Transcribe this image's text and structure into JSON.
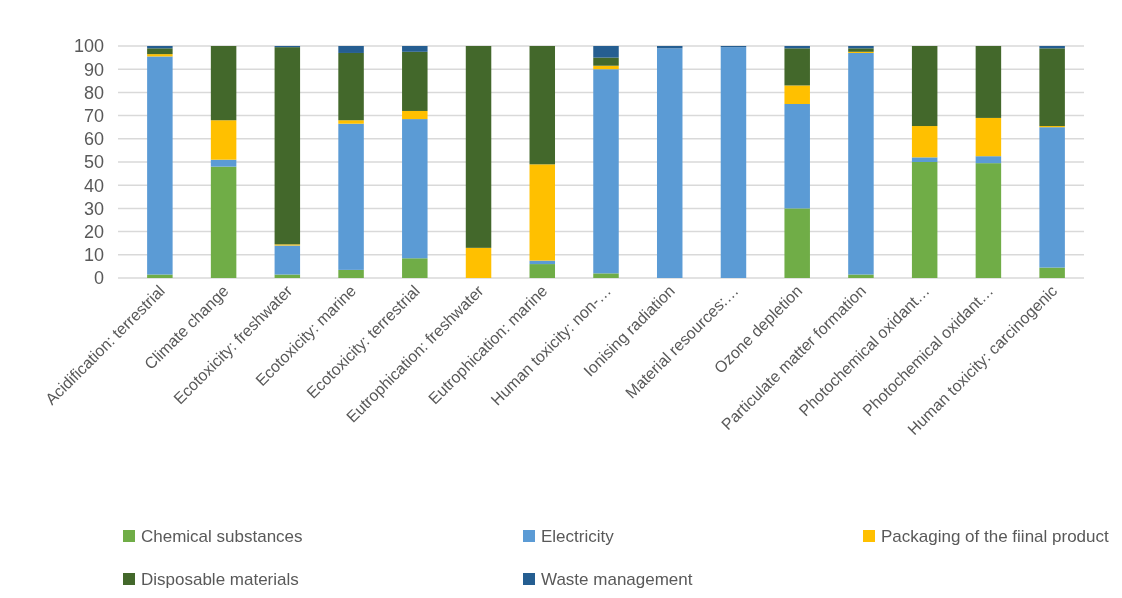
{
  "chart_data": {
    "type": "bar",
    "stacked": true,
    "grid": "y",
    "legend": "bottom",
    "categories": [
      "Acidification: terrestrial",
      "Climate change",
      "Ecotoxicity: freshwater",
      "Ecotoxicity: marine",
      "Ecotoxicity: terrestrial",
      "Eutrophication: freshwater",
      "Eutrophication: marine",
      "Human toxicity: non-…",
      "Ionising radiation",
      "Material resources:…",
      "Ozone depletion",
      "Particulate matter formation",
      "Photochemical oxidant…",
      "Photochemical oxidant…",
      "Human toxicity: carcinogenic"
    ],
    "ylim": [
      0,
      100
    ],
    "yticks": [
      0,
      10,
      20,
      30,
      40,
      50,
      60,
      70,
      80,
      90,
      100
    ],
    "series": [
      {
        "name": "Chemical substances",
        "color": "#70ad47",
        "values": [
          1.5,
          48,
          1.5,
          3.5,
          8.5,
          0,
          6,
          2,
          0,
          0,
          30,
          1.5,
          50,
          49.5,
          4.5
        ]
      },
      {
        "name": "Electricity",
        "color": "#5b9bd5",
        "values": [
          94,
          3,
          12.5,
          63,
          60,
          0,
          1.5,
          88,
          99,
          99.5,
          45,
          95.5,
          2,
          3,
          60.5
        ]
      },
      {
        "name": "Packaging of the fiinal product",
        "color": "#ffc000",
        "values": [
          1,
          17,
          0.5,
          1.5,
          3.5,
          13,
          41.5,
          1.5,
          0,
          0,
          8,
          0.5,
          13.5,
          16.5,
          0.5
        ]
      },
      {
        "name": "Disposable materials",
        "color": "#43682b",
        "values": [
          2.5,
          32,
          85,
          29,
          25.5,
          87,
          51,
          3.5,
          0,
          0,
          16,
          1.5,
          34.5,
          31,
          33.5
        ]
      },
      {
        "name": "Waste management",
        "color": "#255e91",
        "values": [
          1,
          0,
          0.5,
          3,
          2.5,
          0,
          0,
          5,
          1,
          0.5,
          1,
          1,
          0,
          0,
          1
        ]
      }
    ]
  }
}
